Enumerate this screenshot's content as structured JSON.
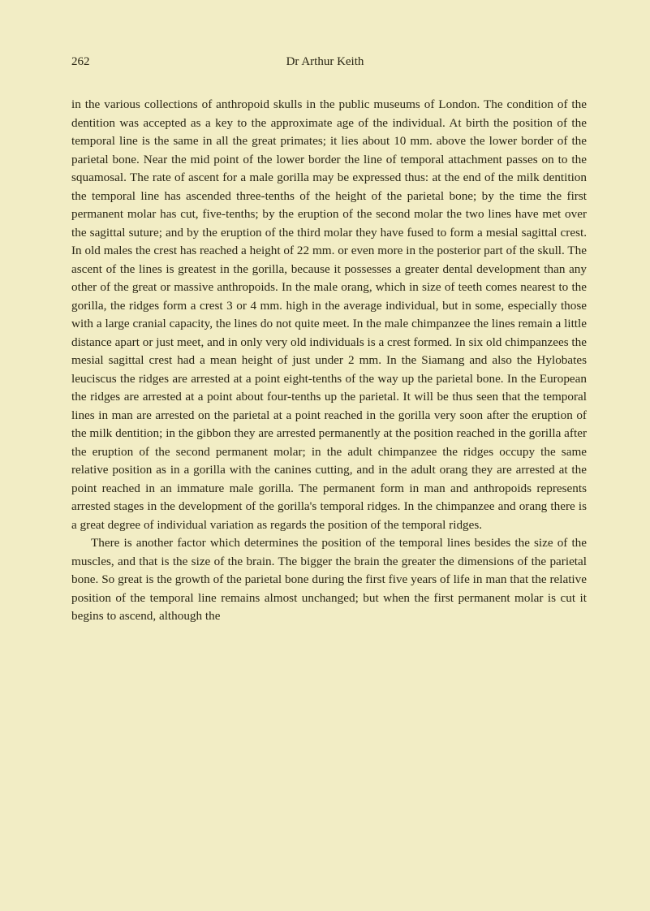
{
  "page": {
    "number": "262",
    "author": "Dr Arthur Keith",
    "background_color": "#f2edc5",
    "text_color": "#2a2614",
    "paragraphs": [
      "in the various collections of anthropoid skulls in the public museums of London. The condition of the dentition was accepted as a key to the approximate age of the individual. At birth the position of the temporal line is the same in all the great primates; it lies about 10 mm. above the lower border of the parietal bone. Near the mid point of the lower border the line of temporal attachment passes on to the squamosal. The rate of ascent for a male gorilla may be expressed thus: at the end of the milk dentition the temporal line has ascended three-tenths of the height of the parietal bone; by the time the first permanent molar has cut, five-tenths; by the eruption of the second molar the two lines have met over the sagittal suture; and by the eruption of the third molar they have fused to form a mesial sagittal crest. In old males the crest has reached a height of 22 mm. or even more in the posterior part of the skull. The ascent of the lines is greatest in the gorilla, because it possesses a greater dental development than any other of the great or massive anthropoids. In the male orang, which in size of teeth comes nearest to the gorilla, the ridges form a crest 3 or 4 mm. high in the average individual, but in some, especially those with a large cranial capacity, the lines do not quite meet. In the male chimpanzee the lines remain a little distance apart or just meet, and in only very old individuals is a crest formed. In six old chimpanzees the mesial sagittal crest had a mean height of just under 2 mm. In the Siamang and also the Hylobates leuciscus the ridges are arrested at a point eight-tenths of the way up the parietal bone. In the European the ridges are arrested at a point about four-tenths up the parietal. It will be thus seen that the temporal lines in man are arrested on the parietal at a point reached in the gorilla very soon after the eruption of the milk dentition; in the gibbon they are arrested permanently at the position reached in the gorilla after the eruption of the second permanent molar; in the adult chimpanzee the ridges occupy the same relative position as in a gorilla with the canines cutting, and in the adult orang they are arrested at the point reached in an immature male gorilla. The permanent form in man and anthropoids represents arrested stages in the development of the gorilla's temporal ridges. In the chimpanzee and orang there is a great degree of individual variation as regards the position of the temporal ridges.",
      "There is another factor which determines the position of the temporal lines besides the size of the muscles, and that is the size of the brain. The bigger the brain the greater the dimensions of the parietal bone. So great is the growth of the parietal bone during the first five years of life in man that the relative position of the temporal line remains almost unchanged; but when the first permanent molar is cut it begins to ascend, although the"
    ]
  }
}
